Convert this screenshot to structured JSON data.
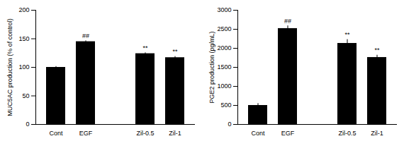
{
  "chart_data": [
    {
      "type": "bar",
      "categories": [
        "Cont",
        "EGF",
        null,
        "Zil-0.5",
        "Zil-1"
      ],
      "values": [
        100,
        145,
        null,
        124,
        117
      ],
      "errors": [
        1.5,
        1.5,
        null,
        1.5,
        2
      ],
      "annotations": [
        null,
        "##",
        null,
        "**",
        "**"
      ],
      "ylabel": "MUC5AC production (% of control)",
      "ylim": [
        0,
        200
      ],
      "yticks": [
        0,
        50,
        100,
        150,
        200
      ],
      "color": "#000000",
      "grid": false
    },
    {
      "type": "bar",
      "categories": [
        "Cont",
        "EGF",
        null,
        "Zil-0.5",
        "Zil-1"
      ],
      "values": [
        500,
        2520,
        null,
        2130,
        1760
      ],
      "errors": [
        50,
        70,
        null,
        100,
        60
      ],
      "annotations": [
        null,
        "##",
        null,
        "**",
        "**"
      ],
      "ylabel": "PGE2 production (pg/mL)",
      "ylim": [
        0,
        3000
      ],
      "yticks": [
        0,
        500,
        1000,
        1500,
        2000,
        2500,
        3000
      ],
      "color": "#000000",
      "grid": false
    }
  ]
}
